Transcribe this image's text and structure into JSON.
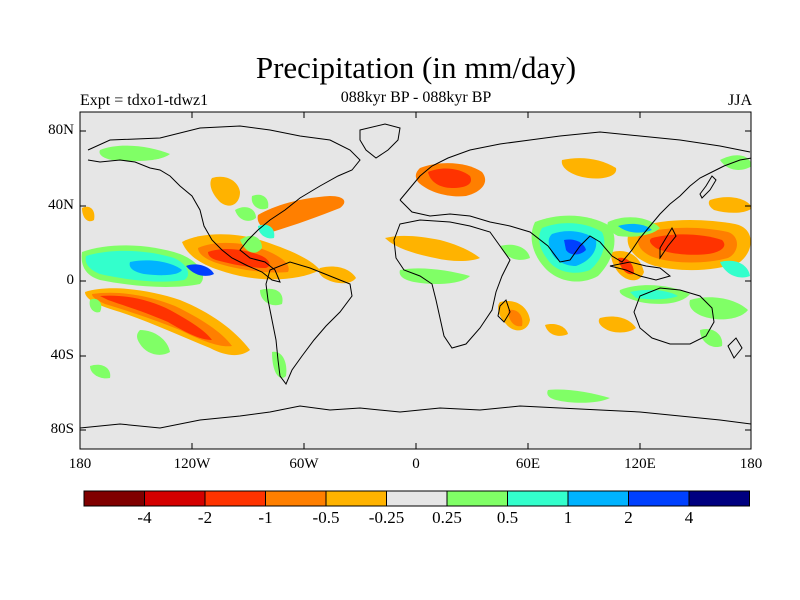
{
  "title": "Precipitation (in mm/day)",
  "subtitle": "088kyr BP - 088kyr BP",
  "left_label": "Expt = tdxo1-tdwz1",
  "right_label": "JJA",
  "lat_ticks": [
    "80N",
    "40N",
    "0",
    "40S",
    "80S"
  ],
  "lon_ticks": [
    "180",
    "120W",
    "60W",
    "0",
    "60E",
    "120E",
    "180"
  ],
  "colorbar": {
    "labels": [
      "-4",
      "-2",
      "-1",
      "-0.5",
      "-0.25",
      "0.25",
      "0.5",
      "1",
      "2",
      "4"
    ],
    "colors": [
      "#800000",
      "#d40000",
      "#ff3300",
      "#ff7f00",
      "#ffb300",
      "#e6e6e6",
      "#80ff66",
      "#33ffcc",
      "#00b3ff",
      "#0040ff",
      "#000080"
    ]
  },
  "background_color": "#e6e6e6"
}
